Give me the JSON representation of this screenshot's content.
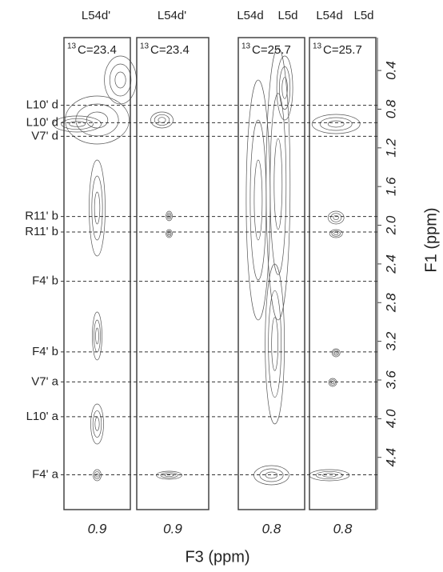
{
  "header": {
    "panel_labels": [
      [
        "L54d'"
      ],
      [
        "L54d'"
      ],
      [
        "L54d",
        "L5d"
      ],
      [
        "L54d",
        "L5d"
      ]
    ]
  },
  "panels": [
    {
      "isotope": "13",
      "carbon": "C=23.4",
      "x_tick": "0.9"
    },
    {
      "isotope": "13",
      "carbon": "C=23.4",
      "x_tick": "0.9"
    },
    {
      "isotope": "13",
      "carbon": "C=25.7",
      "x_tick": "0.8"
    },
    {
      "isotope": "13",
      "carbon": "C=25.7",
      "x_tick": "0.8"
    }
  ],
  "x_axis": {
    "label": "F3 (ppm)"
  },
  "y_axis": {
    "label": "F1 (ppm)",
    "ylim": [
      0.06,
      4.94
    ],
    "yticks": [
      0.4,
      0.8,
      1.2,
      1.6,
      {
        "value": 2,
        "label": "2.0"
      },
      2.4,
      2.8,
      3.2,
      3.6,
      {
        "value": 4,
        "label": "4.0"
      },
      4.4
    ]
  },
  "peaks": [
    {
      "label": "L10' d",
      "ppm": 0.76
    },
    {
      "label": "L10' d",
      "ppm": 0.94
    },
    {
      "label": "V7' d",
      "ppm": 1.08
    },
    {
      "label": "R11' b",
      "ppm": 1.91
    },
    {
      "label": "R11' b",
      "ppm": 2.07
    },
    {
      "label": "F4' b",
      "ppm": 2.58
    },
    {
      "label": "F4' b",
      "ppm": 3.31
    },
    {
      "label": "V7' a",
      "ppm": 3.62
    },
    {
      "label": "L10' a",
      "ppm": 3.98
    },
    {
      "label": "F4' a",
      "ppm": 4.58
    }
  ]
}
